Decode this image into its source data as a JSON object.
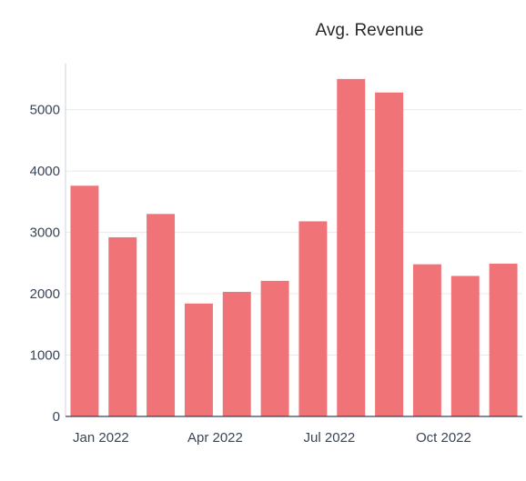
{
  "chart_data": {
    "type": "bar",
    "title": "Avg. Revenue",
    "xlabel": "",
    "ylabel": "",
    "x": [
      "2022-01",
      "2022-02",
      "2022-03",
      "2022-04",
      "2022-05",
      "2022-06",
      "2022-07",
      "2022-08",
      "2022-09",
      "2022-10",
      "2022-11",
      "2022-12"
    ],
    "values": [
      3760,
      2920,
      3300,
      1840,
      2030,
      2210,
      3180,
      5500,
      5280,
      2480,
      2290,
      2490
    ],
    "ylim": [
      0,
      5750
    ],
    "y_ticks": [
      0,
      1000,
      2000,
      3000,
      4000,
      5000
    ],
    "y_tick_labels": [
      "0",
      "1000",
      "2000",
      "3000",
      "4000",
      "5000"
    ],
    "x_ticks": [
      {
        "at": "2022-01",
        "label": "Jan 2022"
      },
      {
        "at": "2022-04",
        "label": "Apr 2022"
      },
      {
        "at": "2022-07",
        "label": "Jul 2022"
      },
      {
        "at": "2022-10",
        "label": "Oct 2022"
      }
    ],
    "grid": true,
    "legend": "none",
    "colors": {
      "bar": "#f07378"
    }
  }
}
